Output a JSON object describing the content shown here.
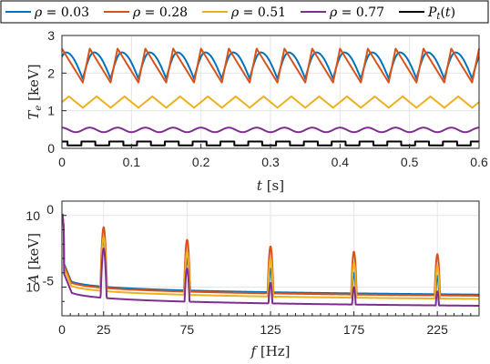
{
  "legend": {
    "items": [
      {
        "label": "ρ = 0.03",
        "color": "#0072BD"
      },
      {
        "label": "ρ = 0.28",
        "color": "#D95319"
      },
      {
        "label": "ρ = 0.51",
        "color": "#EDB120"
      },
      {
        "label": "ρ = 0.77",
        "color": "#7E2F8E"
      },
      {
        "label": "Pt(t)",
        "color": "#000000"
      }
    ]
  },
  "chart_data": [
    {
      "type": "line",
      "xlabel": "t [s]",
      "ylabel": "Te [keV]",
      "xlim": [
        0,
        0.6
      ],
      "ylim": [
        0,
        3
      ],
      "xticks": [
        "0",
        "0.1",
        "0.2",
        "0.3",
        "0.4",
        "0.5",
        "0.6"
      ],
      "yticks": [
        "0",
        "1",
        "2",
        "3"
      ],
      "grid": true,
      "period_s": 0.04,
      "series": [
        {
          "name": "ρ = 0.03",
          "color": "#0072BD",
          "shape": "sawtooth-smooth",
          "min": 1.85,
          "max": 2.55
        },
        {
          "name": "ρ = 0.28",
          "color": "#D95319",
          "shape": "sawtooth",
          "min": 1.75,
          "max": 2.65
        },
        {
          "name": "ρ = 0.51",
          "color": "#EDB120",
          "shape": "triangle",
          "min": 1.08,
          "max": 1.38
        },
        {
          "name": "ρ = 0.77",
          "color": "#7E2F8E",
          "shape": "sine",
          "min": 0.43,
          "max": 0.55
        },
        {
          "name": "Pt(t)",
          "color": "#000000",
          "shape": "square",
          "min": 0.08,
          "max": 0.18
        }
      ]
    },
    {
      "type": "line",
      "xlabel": "f [Hz]",
      "ylabel": "A [keV]",
      "xlim": [
        0,
        250
      ],
      "yscale": "log",
      "ylim": [
        1e-07,
        10
      ],
      "xticks": [
        "0",
        "25",
        "75",
        "125",
        "175",
        "225"
      ],
      "yticks": [
        "10^0",
        "10^-5"
      ],
      "grid": true,
      "peaks_hz": [
        25,
        75,
        125,
        175,
        225
      ],
      "series": [
        {
          "name": "ρ = 0.03",
          "color": "#0072BD",
          "baseline_low_f": 0.001,
          "baseline_high_f": 3e-06,
          "peaks": [
            0.02,
            0.001,
            0.0002,
            0.0001,
            6e-05
          ]
        },
        {
          "name": "ρ = 0.28",
          "color": "#D95319",
          "baseline_low_f": 0.0008,
          "baseline_high_f": 2.5e-06,
          "peaks": [
            0.15,
            0.02,
            0.007,
            0.003,
            0.002
          ]
        },
        {
          "name": "ρ = 0.51",
          "color": "#EDB120",
          "baseline_low_f": 0.0005,
          "baseline_high_f": 1.5e-06,
          "peaks": [
            0.03,
            0.003,
            0.001,
            0.0005,
            0.0003
          ]
        },
        {
          "name": "ρ = 0.77",
          "color": "#7E2F8E",
          "baseline_low_f": 0.0002,
          "baseline_high_f": 5e-07,
          "peaks": [
            0.005,
            0.0002,
            2e-05,
            1e-05,
            5e-06
          ]
        }
      ]
    }
  ]
}
